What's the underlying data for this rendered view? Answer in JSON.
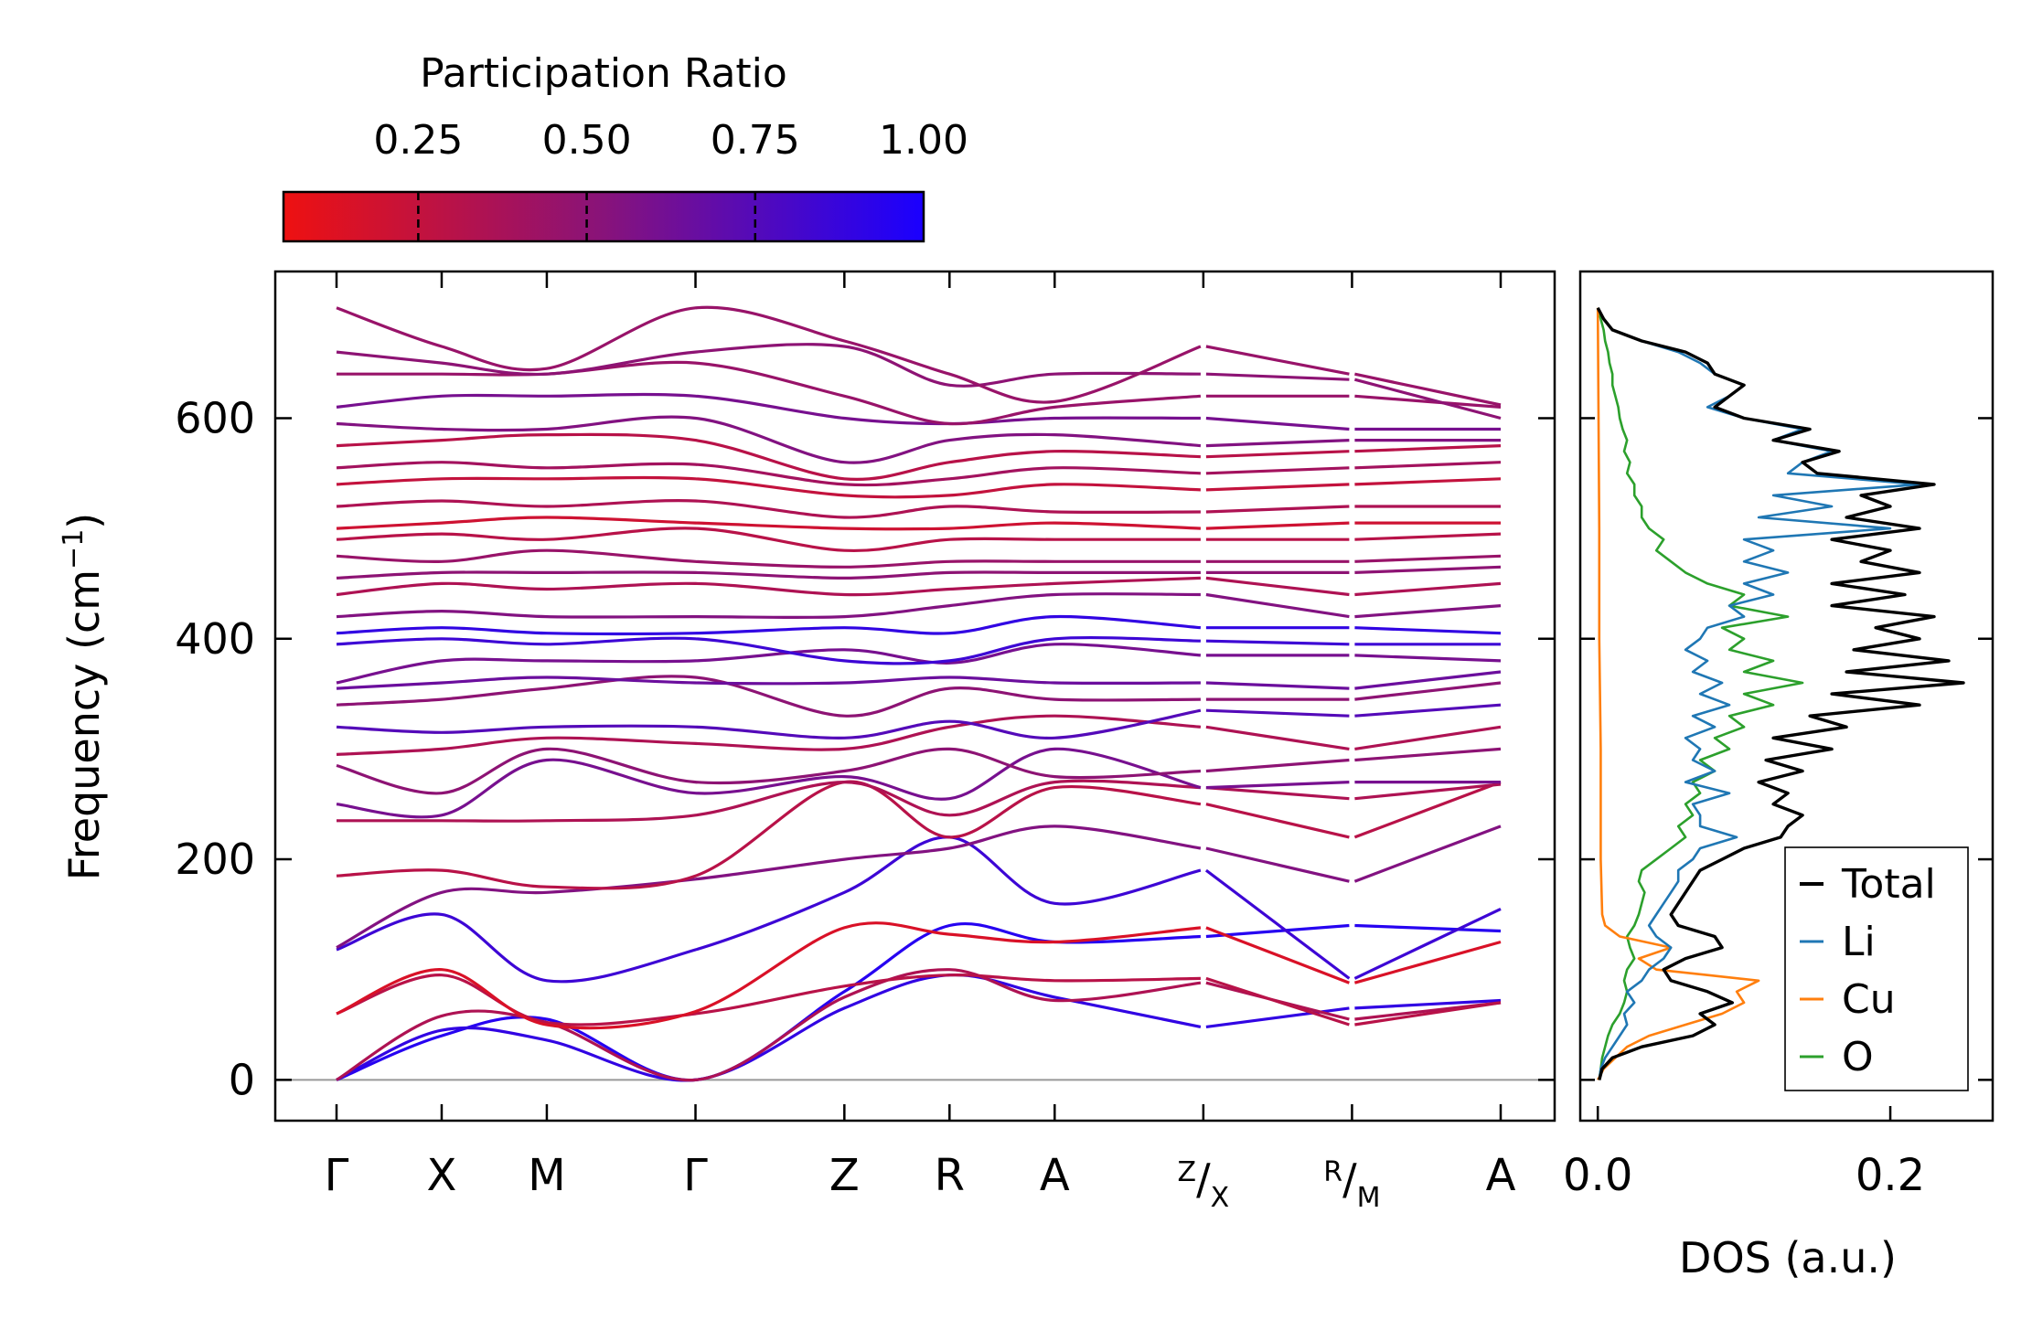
{
  "chart_data": [
    {
      "type": "line",
      "title": "",
      "ylabel_main": "Frequency (cm",
      "ylabel_sup": "−1",
      "ylabel_end": ")",
      "xlabel": "",
      "ylim": [
        -37,
        733
      ],
      "yticks": [
        "0",
        "200",
        "400",
        "600"
      ],
      "ytick_values": [
        0,
        200,
        400,
        600
      ],
      "path_labels": [
        "Γ",
        "X",
        "M",
        "Γ",
        "Z",
        "R",
        "A",
        "Z/X",
        "R/M",
        "A"
      ],
      "high_symmetry_points": [
        {
          "name": "Γ",
          "x": 0.0
        },
        {
          "name": "X",
          "x": 0.5
        },
        {
          "name": "M",
          "x": 1.0
        },
        {
          "name": "Γ",
          "x": 1.707
        },
        {
          "name": "Z",
          "x": 2.415
        },
        {
          "name": "R",
          "x": 2.915
        },
        {
          "name": "A",
          "x": 3.415
        },
        {
          "name": "Z|X",
          "x": 4.122
        },
        {
          "name": "R|M",
          "x": 4.829
        },
        {
          "name": "A",
          "x": 5.536
        }
      ],
      "split_labels": [
        {
          "top": "Z",
          "bottom": "X"
        },
        {
          "top": "R",
          "bottom": "M"
        }
      ],
      "segment_breaks": [
        4.122,
        4.829
      ],
      "color_encoding": "Participation Ratio",
      "colorbar": {
        "label": "Participation Ratio",
        "ticks": [
          "0.25",
          "0.50",
          "0.75",
          "1.00"
        ],
        "tick_values": [
          0.25,
          0.5,
          0.75,
          1.0
        ],
        "range": [
          0.05,
          1.0
        ],
        "low_color": "#ee1111",
        "mid_color": "#88137a",
        "high_color": "#1a00ff"
      },
      "bands": [
        {
          "freq": [
            0,
            40,
            55,
            0,
            80,
            140,
            125,
            130,
            140,
            135
          ],
          "pr": 0.95
        },
        {
          "freq": [
            0,
            45,
            36,
            0,
            65,
            95,
            75,
            48,
            65,
            72
          ],
          "pr": 0.9
        },
        {
          "freq": [
            0,
            58,
            52,
            0,
            75,
            100,
            72,
            88,
            55,
            70
          ],
          "pr": 0.35
        },
        {
          "freq": [
            60,
            95,
            52,
            60,
            85,
            95,
            90,
            92,
            50,
            70
          ],
          "pr": 0.3
        },
        {
          "freq": [
            60,
            100,
            50,
            62,
            138,
            132,
            125,
            138,
            88,
            125
          ],
          "pr": 0.15
        },
        {
          "freq": [
            118,
            150,
            90,
            118,
            170,
            220,
            160,
            190,
            92,
            155
          ],
          "pr": 0.85
        },
        {
          "freq": [
            120,
            170,
            170,
            182,
            200,
            210,
            230,
            210,
            180,
            230
          ],
          "pr": 0.55
        },
        {
          "freq": [
            185,
            190,
            175,
            185,
            270,
            220,
            265,
            250,
            220,
            270
          ],
          "pr": 0.3
        },
        {
          "freq": [
            235,
            235,
            235,
            240,
            270,
            240,
            270,
            265,
            255,
            268
          ],
          "pr": 0.35
        },
        {
          "freq": [
            250,
            240,
            290,
            260,
            275,
            255,
            300,
            265,
            270,
            270
          ],
          "pr": 0.6
        },
        {
          "freq": [
            285,
            260,
            300,
            270,
            280,
            300,
            275,
            280,
            290,
            300
          ],
          "pr": 0.5
        },
        {
          "freq": [
            295,
            300,
            310,
            305,
            300,
            320,
            330,
            320,
            300,
            320
          ],
          "pr": 0.35
        },
        {
          "freq": [
            320,
            315,
            320,
            320,
            310,
            325,
            310,
            335,
            330,
            340
          ],
          "pr": 0.75
        },
        {
          "freq": [
            340,
            345,
            355,
            365,
            330,
            355,
            345,
            345,
            345,
            360
          ],
          "pr": 0.5
        },
        {
          "freq": [
            355,
            360,
            365,
            360,
            360,
            365,
            360,
            360,
            355,
            370
          ],
          "pr": 0.65
        },
        {
          "freq": [
            360,
            380,
            380,
            380,
            390,
            378,
            395,
            385,
            385,
            380
          ],
          "pr": 0.6
        },
        {
          "freq": [
            395,
            400,
            395,
            400,
            380,
            380,
            400,
            398,
            395,
            395
          ],
          "pr": 0.85
        },
        {
          "freq": [
            405,
            410,
            405,
            405,
            410,
            405,
            420,
            410,
            410,
            405
          ],
          "pr": 0.9
        },
        {
          "freq": [
            420,
            425,
            420,
            420,
            420,
            430,
            440,
            440,
            420,
            430
          ],
          "pr": 0.55
        },
        {
          "freq": [
            440,
            450,
            445,
            450,
            440,
            445,
            450,
            455,
            440,
            450
          ],
          "pr": 0.35
        },
        {
          "freq": [
            455,
            460,
            460,
            460,
            455,
            460,
            460,
            460,
            460,
            465
          ],
          "pr": 0.5
        },
        {
          "freq": [
            475,
            470,
            480,
            470,
            465,
            470,
            470,
            470,
            470,
            475
          ],
          "pr": 0.45
        },
        {
          "freq": [
            490,
            495,
            490,
            500,
            480,
            490,
            490,
            490,
            490,
            495
          ],
          "pr": 0.3
        },
        {
          "freq": [
            500,
            505,
            510,
            505,
            500,
            500,
            505,
            500,
            505,
            505
          ],
          "pr": 0.2
        },
        {
          "freq": [
            520,
            525,
            520,
            525,
            510,
            520,
            515,
            515,
            520,
            520
          ],
          "pr": 0.35
        },
        {
          "freq": [
            540,
            545,
            545,
            545,
            530,
            530,
            540,
            535,
            540,
            545
          ],
          "pr": 0.25
        },
        {
          "freq": [
            555,
            560,
            555,
            558,
            540,
            545,
            555,
            550,
            555,
            560
          ],
          "pr": 0.4
        },
        {
          "freq": [
            575,
            580,
            585,
            580,
            545,
            560,
            570,
            565,
            570,
            575
          ],
          "pr": 0.3
        },
        {
          "freq": [
            595,
            590,
            590,
            600,
            560,
            580,
            585,
            575,
            580,
            580
          ],
          "pr": 0.55
        },
        {
          "freq": [
            610,
            620,
            620,
            620,
            600,
            595,
            600,
            600,
            590,
            590
          ],
          "pr": 0.6
        },
        {
          "freq": [
            640,
            640,
            640,
            650,
            620,
            595,
            610,
            620,
            620,
            610
          ],
          "pr": 0.45
        },
        {
          "freq": [
            660,
            650,
            640,
            660,
            665,
            630,
            640,
            640,
            635,
            600
          ],
          "pr": 0.5
        },
        {
          "freq": [
            700,
            665,
            645,
            700,
            670,
            640,
            615,
            665,
            640,
            612
          ],
          "pr": 0.45
        }
      ]
    },
    {
      "type": "line",
      "title": "",
      "xlabel": "DOS (a.u.)",
      "ylabel": "",
      "xlim": [
        -0.012,
        0.27
      ],
      "ylim": [
        -37,
        733
      ],
      "xticks": [
        "0.0",
        "0.2"
      ],
      "xtick_values": [
        0.0,
        0.2
      ],
      "legend_position": "bottom-right",
      "series": [
        {
          "name": "Total",
          "color": "#000000",
          "y": [
            0,
            10,
            20,
            30,
            40,
            50,
            60,
            70,
            80,
            90,
            100,
            110,
            120,
            130,
            140,
            150,
            160,
            170,
            180,
            190,
            200,
            210,
            220,
            230,
            240,
            250,
            260,
            270,
            280,
            290,
            300,
            310,
            320,
            330,
            340,
            350,
            360,
            370,
            380,
            390,
            400,
            410,
            420,
            430,
            440,
            450,
            460,
            470,
            480,
            490,
            500,
            510,
            520,
            530,
            540,
            550,
            560,
            570,
            580,
            590,
            600,
            610,
            620,
            630,
            640,
            650,
            660,
            670,
            680,
            690,
            700
          ],
          "x": [
            0.001,
            0.003,
            0.01,
            0.03,
            0.065,
            0.08,
            0.07,
            0.092,
            0.075,
            0.05,
            0.045,
            0.06,
            0.085,
            0.08,
            0.055,
            0.05,
            0.055,
            0.06,
            0.065,
            0.07,
            0.085,
            0.1,
            0.125,
            0.13,
            0.14,
            0.12,
            0.13,
            0.11,
            0.14,
            0.115,
            0.16,
            0.12,
            0.17,
            0.145,
            0.22,
            0.16,
            0.25,
            0.17,
            0.24,
            0.175,
            0.22,
            0.19,
            0.23,
            0.16,
            0.21,
            0.16,
            0.22,
            0.18,
            0.2,
            0.16,
            0.22,
            0.17,
            0.2,
            0.18,
            0.23,
            0.15,
            0.14,
            0.165,
            0.12,
            0.145,
            0.1,
            0.08,
            0.09,
            0.1,
            0.08,
            0.075,
            0.06,
            0.03,
            0.01,
            0.004,
            0.0
          ]
        },
        {
          "name": "Li",
          "color": "#1f77b4",
          "y": [
            0,
            10,
            20,
            30,
            40,
            50,
            60,
            70,
            80,
            90,
            100,
            110,
            120,
            130,
            140,
            150,
            160,
            170,
            180,
            190,
            200,
            210,
            220,
            230,
            240,
            250,
            260,
            270,
            280,
            290,
            300,
            310,
            320,
            330,
            340,
            350,
            360,
            370,
            380,
            390,
            400,
            410,
            420,
            430,
            440,
            450,
            460,
            470,
            480,
            490,
            500,
            510,
            520,
            530,
            540,
            550,
            560,
            570,
            580,
            590,
            600,
            610,
            620,
            630,
            640,
            650,
            660,
            670,
            680,
            690,
            700
          ],
          "x": [
            0.001,
            0.002,
            0.005,
            0.01,
            0.015,
            0.02,
            0.018,
            0.025,
            0.02,
            0.03,
            0.035,
            0.045,
            0.05,
            0.04,
            0.035,
            0.04,
            0.045,
            0.05,
            0.055,
            0.055,
            0.065,
            0.07,
            0.095,
            0.07,
            0.07,
            0.065,
            0.09,
            0.06,
            0.08,
            0.065,
            0.07,
            0.06,
            0.08,
            0.065,
            0.09,
            0.07,
            0.085,
            0.065,
            0.075,
            0.06,
            0.07,
            0.075,
            0.1,
            0.09,
            0.12,
            0.1,
            0.13,
            0.1,
            0.12,
            0.1,
            0.2,
            0.11,
            0.16,
            0.12,
            0.22,
            0.13,
            0.14,
            0.16,
            0.12,
            0.14,
            0.1,
            0.075,
            0.09,
            0.1,
            0.08,
            0.07,
            0.055,
            0.03,
            0.01,
            0.004,
            0.0
          ]
        },
        {
          "name": "Cu",
          "color": "#ff7f0e",
          "y": [
            0,
            10,
            20,
            30,
            40,
            50,
            60,
            70,
            80,
            90,
            95,
            100,
            110,
            120,
            130,
            140,
            150,
            200,
            300,
            400,
            500,
            600,
            700
          ],
          "x": [
            0.0,
            0.004,
            0.012,
            0.02,
            0.035,
            0.06,
            0.085,
            0.1,
            0.095,
            0.11,
            0.075,
            0.04,
            0.028,
            0.05,
            0.015,
            0.005,
            0.003,
            0.002,
            0.002,
            0.001,
            0.001,
            0.0005,
            0.0
          ]
        },
        {
          "name": "O",
          "color": "#2ca02c",
          "y": [
            0,
            10,
            20,
            30,
            40,
            50,
            60,
            70,
            80,
            90,
            100,
            110,
            120,
            130,
            140,
            150,
            160,
            170,
            180,
            190,
            200,
            210,
            220,
            230,
            240,
            250,
            260,
            270,
            280,
            290,
            300,
            310,
            320,
            330,
            340,
            350,
            360,
            370,
            380,
            390,
            400,
            410,
            420,
            430,
            440,
            450,
            460,
            470,
            480,
            490,
            500,
            510,
            520,
            530,
            540,
            550,
            560,
            570,
            580,
            590,
            600,
            610,
            620,
            630,
            640,
            650,
            660,
            670,
            680,
            690,
            700
          ],
          "x": [
            0.001,
            0.002,
            0.003,
            0.005,
            0.007,
            0.01,
            0.015,
            0.018,
            0.02,
            0.018,
            0.02,
            0.025,
            0.022,
            0.02,
            0.025,
            0.028,
            0.03,
            0.032,
            0.028,
            0.03,
            0.04,
            0.05,
            0.06,
            0.055,
            0.065,
            0.06,
            0.07,
            0.065,
            0.08,
            0.07,
            0.09,
            0.08,
            0.1,
            0.09,
            0.12,
            0.1,
            0.14,
            0.1,
            0.12,
            0.09,
            0.1,
            0.085,
            0.13,
            0.09,
            0.1,
            0.075,
            0.06,
            0.05,
            0.04,
            0.045,
            0.035,
            0.03,
            0.03,
            0.025,
            0.025,
            0.02,
            0.022,
            0.018,
            0.02,
            0.017,
            0.015,
            0.014,
            0.012,
            0.01,
            0.01,
            0.008,
            0.007,
            0.005,
            0.004,
            0.002,
            0.0
          ]
        }
      ]
    }
  ]
}
